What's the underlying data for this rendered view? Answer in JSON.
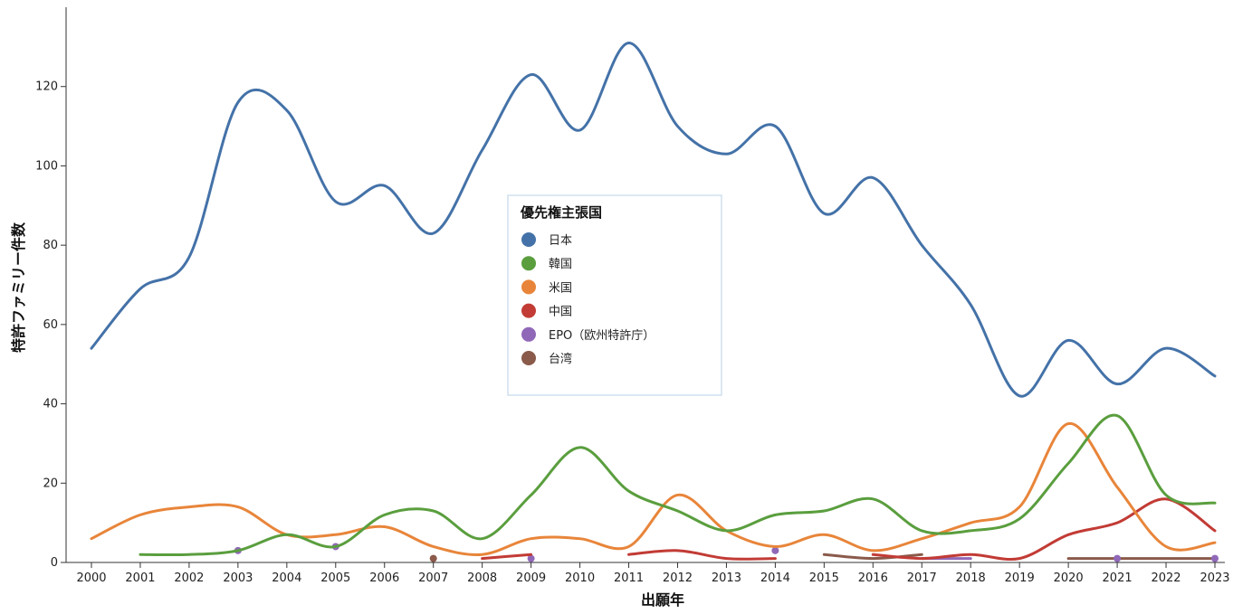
{
  "chart_data": {
    "type": "line",
    "xlabel": "出願年",
    "ylabel": "特許ファミリー件数",
    "x": [
      2000,
      2001,
      2002,
      2003,
      2004,
      2005,
      2006,
      2007,
      2008,
      2009,
      2010,
      2011,
      2012,
      2013,
      2014,
      2015,
      2016,
      2017,
      2018,
      2019,
      2020,
      2021,
      2022,
      2023
    ],
    "xlim": [
      2000,
      2023
    ],
    "ylim": [
      0,
      140
    ],
    "yticks": [
      0,
      20,
      40,
      60,
      80,
      100,
      120
    ],
    "grid": false,
    "legend": {
      "title": "優先権主張国",
      "placement": "center"
    },
    "series": [
      {
        "name": "日本",
        "color": "#4472a8",
        "values": [
          54,
          69,
          77,
          116,
          114,
          91,
          95,
          83,
          104,
          123,
          109,
          131,
          110,
          103,
          110,
          88,
          97,
          80,
          65,
          42,
          56,
          45,
          54,
          47
        ]
      },
      {
        "name": "韓国",
        "color": "#5a9e3e",
        "values": [
          null,
          2,
          2,
          3,
          7,
          4,
          12,
          13,
          6,
          17,
          29,
          18,
          13,
          8,
          12,
          13,
          16,
          8,
          8,
          11,
          25,
          37,
          17,
          15
        ]
      },
      {
        "name": "米国",
        "color": "#e8853a",
        "values": [
          6,
          12,
          14,
          14,
          7,
          7,
          9,
          4,
          2,
          6,
          6,
          4,
          17,
          8,
          4,
          7,
          3,
          6,
          10,
          14,
          35,
          19,
          4,
          5
        ]
      },
      {
        "name": "中国",
        "color": "#c23b35",
        "values": [
          null,
          null,
          null,
          null,
          null,
          null,
          null,
          null,
          1,
          2,
          null,
          2,
          3,
          1,
          1,
          null,
          2,
          1,
          2,
          1,
          7,
          10,
          16,
          8
        ]
      },
      {
        "name": "EPO（欧州特許庁）",
        "color": "#9068b8",
        "values": [
          null,
          null,
          null,
          3,
          null,
          4,
          null,
          null,
          null,
          1,
          null,
          null,
          null,
          null,
          3,
          null,
          null,
          1,
          1,
          null,
          null,
          1,
          null,
          1
        ]
      },
      {
        "name": "台湾",
        "color": "#8a5a4a",
        "values": [
          null,
          null,
          null,
          null,
          null,
          null,
          null,
          1,
          null,
          null,
          null,
          null,
          null,
          null,
          null,
          2,
          1,
          2,
          null,
          null,
          1,
          1,
          1,
          1
        ]
      }
    ]
  }
}
